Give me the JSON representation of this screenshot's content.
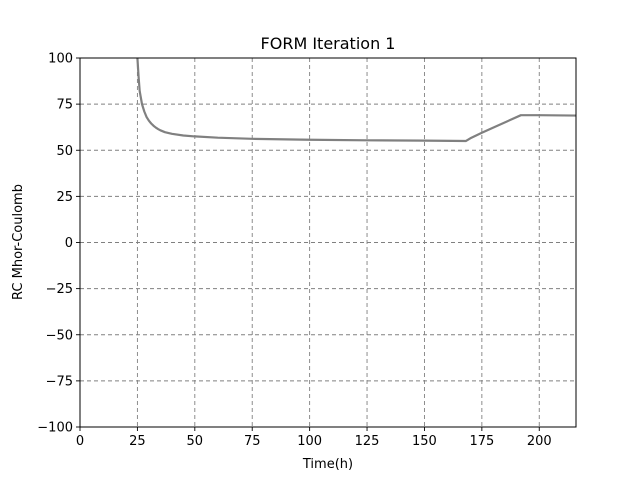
{
  "chart_data": {
    "type": "line",
    "title": "FORM Iteration 1",
    "xlabel": "Time(h)",
    "ylabel": "RC Mhor-Coulomb",
    "xlim": [
      0,
      216
    ],
    "ylim": [
      -100,
      100
    ],
    "grid": true,
    "xticks": [
      "0",
      "25",
      "50",
      "75",
      "100",
      "125",
      "150",
      "175",
      "200"
    ],
    "yticks": [
      "100",
      "75",
      "50",
      "25",
      "0",
      "−25",
      "−50",
      "−75",
      "−100"
    ],
    "series": [
      {
        "color": "#808080",
        "x": [
          25,
          25.5,
          26,
          27,
          28,
          29,
          30,
          31,
          32,
          33,
          34,
          35,
          37,
          40,
          45,
          50,
          60,
          75,
          100,
          125,
          150,
          168,
          170,
          175,
          192,
          200,
          216
        ],
        "y": [
          100,
          90,
          82,
          75,
          71,
          68,
          66,
          64.5,
          63.3,
          62.3,
          61.5,
          60.8,
          59.8,
          58.9,
          58.0,
          57.5,
          56.8,
          56.2,
          55.7,
          55.4,
          55.2,
          55.0,
          56.5,
          59.5,
          69.0,
          69.0,
          68.8
        ]
      }
    ]
  }
}
